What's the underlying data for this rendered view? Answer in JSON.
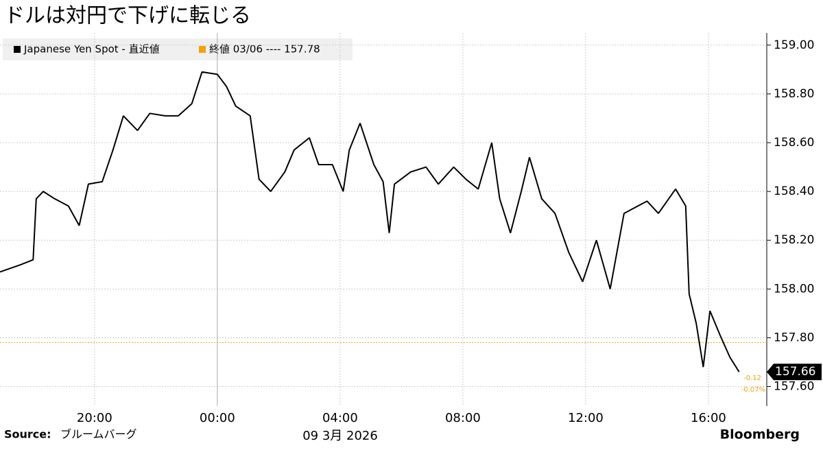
{
  "chart_data": {
    "type": "line",
    "title": "ドルは対円で下げに転じる",
    "source_label": "Source:",
    "source": "ブルームバーグ",
    "brand": "Bloomberg",
    "x_sublabel": "09 3月 2026",
    "x": [
      -7.08,
      -6.4,
      -6.0,
      -5.9,
      -5.67,
      -5.3,
      -4.85,
      -4.5,
      -4.2,
      -3.75,
      -3.4,
      -3.06,
      -2.6,
      -2.2,
      -1.7,
      -1.27,
      -0.83,
      -0.5,
      0,
      0.3,
      0.6,
      1.07,
      1.36,
      1.74,
      2.2,
      2.5,
      3.0,
      3.3,
      3.75,
      4.1,
      4.3,
      4.65,
      5.1,
      5.4,
      5.6,
      5.77,
      6.3,
      6.8,
      7.2,
      7.7,
      8.1,
      8.5,
      8.94,
      9.2,
      9.55,
      9.9,
      10.17,
      10.57,
      11.0,
      11.45,
      11.9,
      12.35,
      12.8,
      13.25,
      13.7,
      14.0,
      14.37,
      14.93,
      15.26,
      15.37,
      15.6,
      15.83,
      16.05,
      16.38,
      16.7,
      17.0
    ],
    "series": [
      {
        "name": "Japanese Yen Spot - 直近値",
        "color": "#000000",
        "values": [
          158.07,
          158.1,
          158.12,
          158.37,
          158.4,
          158.37,
          158.34,
          158.26,
          158.43,
          158.44,
          158.57,
          158.71,
          158.65,
          158.72,
          158.71,
          158.71,
          158.76,
          158.89,
          158.88,
          158.83,
          158.75,
          158.71,
          158.45,
          158.4,
          158.48,
          158.57,
          158.62,
          158.51,
          158.51,
          158.4,
          158.57,
          158.68,
          158.51,
          158.44,
          158.23,
          158.43,
          158.48,
          158.5,
          158.43,
          158.5,
          158.45,
          158.41,
          158.6,
          158.37,
          158.23,
          158.4,
          158.54,
          158.37,
          158.31,
          158.15,
          158.03,
          158.2,
          158.0,
          158.31,
          158.34,
          158.36,
          158.31,
          158.41,
          158.34,
          157.98,
          157.86,
          157.68,
          157.91,
          157.81,
          157.72,
          157.66
        ]
      }
    ],
    "reference": {
      "label": "終値 03/06 ---- 157.78",
      "value": 157.78,
      "color": "#f0a30a"
    },
    "last_value": 157.66,
    "change": "-0.12",
    "change_pct": "-0.07%",
    "xlim": [
      -7.08,
      17.9
    ],
    "xticks": [
      {
        "value": -4,
        "label": "20:00"
      },
      {
        "value": 0,
        "label": "00:00"
      },
      {
        "value": 4,
        "label": "04:00"
      },
      {
        "value": 8,
        "label": "08:00"
      },
      {
        "value": 12,
        "label": "12:00"
      },
      {
        "value": 16,
        "label": "16:00"
      }
    ],
    "ylim": [
      157.52,
      159.05
    ],
    "yticks": [
      {
        "value": 157.6,
        "label": "157.60"
      },
      {
        "value": 157.8,
        "label": "157.80"
      },
      {
        "value": 158.0,
        "label": "158.00"
      },
      {
        "value": 158.2,
        "label": "158.20"
      },
      {
        "value": 158.4,
        "label": "158.40"
      },
      {
        "value": 158.6,
        "label": "158.60"
      },
      {
        "value": 158.8,
        "label": "158.80"
      },
      {
        "value": 159.0,
        "label": "159.00"
      }
    ],
    "grid": true
  }
}
